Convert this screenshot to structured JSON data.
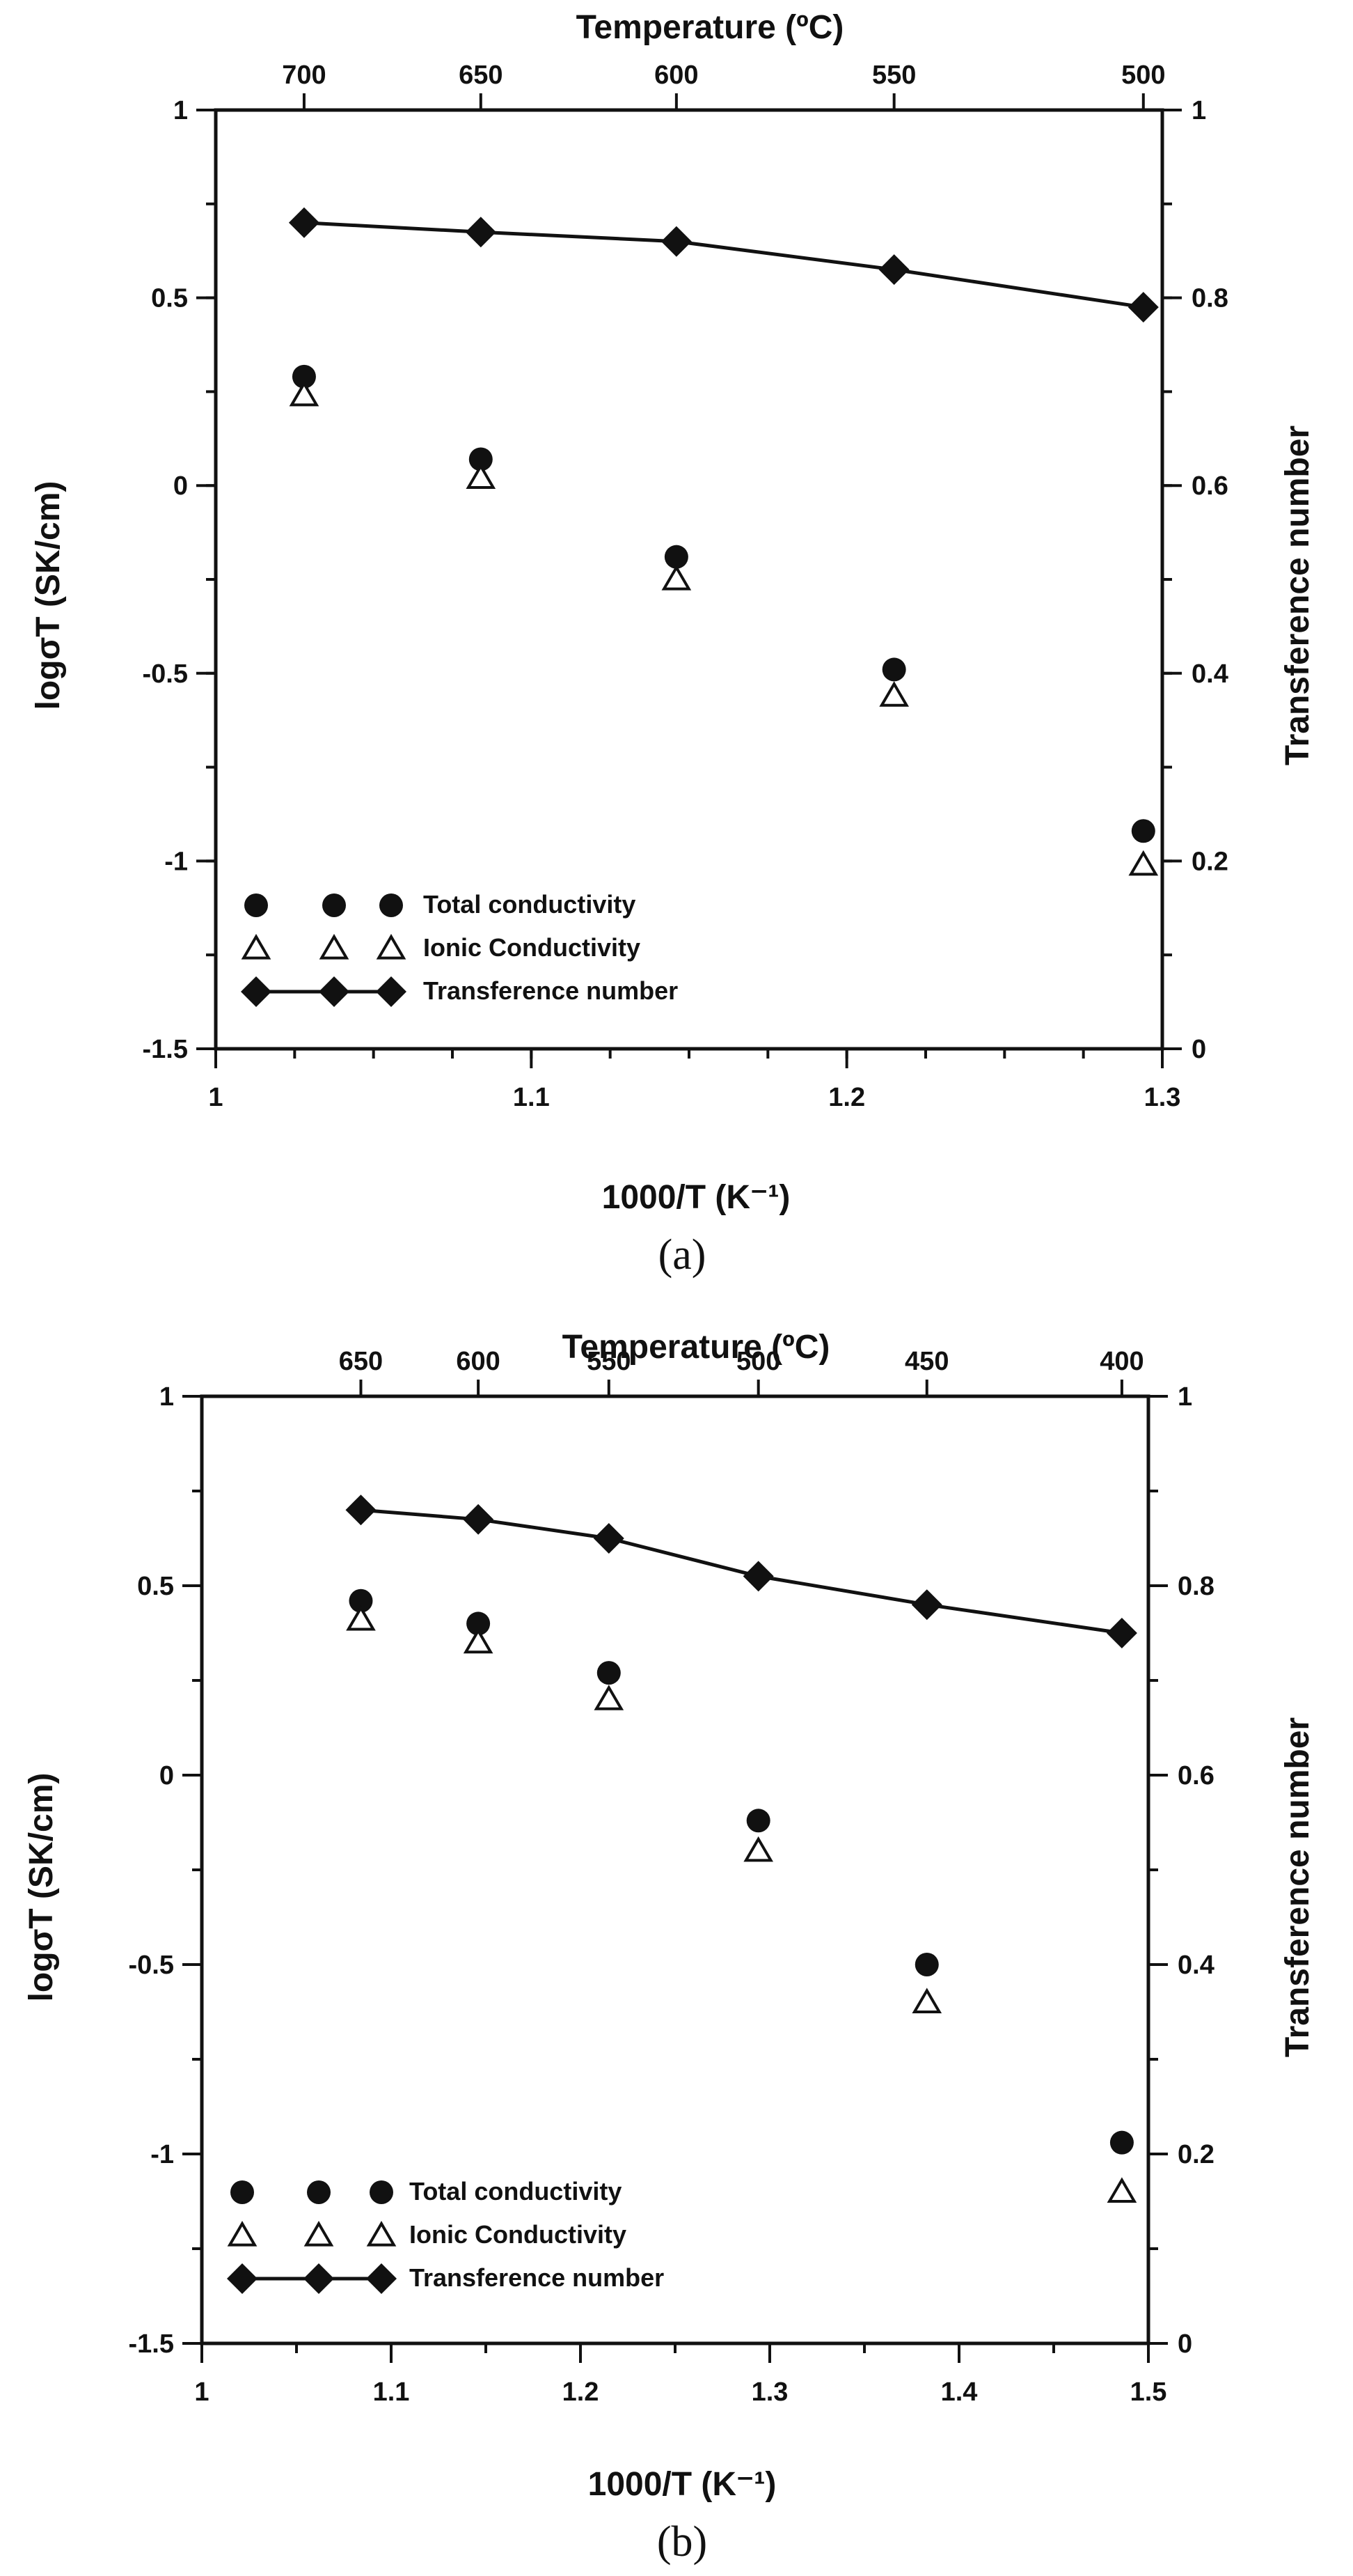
{
  "chart_data": [
    {
      "id": "a",
      "type": "scatter",
      "subfigure_label": "(a)",
      "xlabel": "1000/T (K⁻¹)",
      "ylabel_left": "logσT (SK/cm)",
      "ylabel_right": "Transference number",
      "top_axis_label": "Temperature (ºC)",
      "xlim": [
        1,
        1.3
      ],
      "ylim_left": [
        -1.5,
        1
      ],
      "ylim_right": [
        0,
        1
      ],
      "x_ticks": [
        {
          "v": 1,
          "label": "1"
        },
        {
          "v": 1.1,
          "label": "1.1"
        },
        {
          "v": 1.2,
          "label": "1.2"
        },
        {
          "v": 1.3,
          "label": "1.3"
        }
      ],
      "x_minor_step": 0.025,
      "y_left_ticks": [
        {
          "v": 1,
          "label": "1"
        },
        {
          "v": 0.5,
          "label": "0.5"
        },
        {
          "v": 0,
          "label": "0"
        },
        {
          "v": -0.5,
          "label": "-0.5"
        },
        {
          "v": -1,
          "label": "-1"
        },
        {
          "v": -1.5,
          "label": "-1.5"
        }
      ],
      "y_left_minor_step": 0.25,
      "y_right_ticks": [
        {
          "v": 1,
          "label": "1"
        },
        {
          "v": 0.8,
          "label": "0.8"
        },
        {
          "v": 0.6,
          "label": "0.6"
        },
        {
          "v": 0.4,
          "label": "0.4"
        },
        {
          "v": 0.2,
          "label": "0.2"
        },
        {
          "v": 0,
          "label": "0"
        }
      ],
      "y_right_minor_step": 0.1,
      "top_ticks": [
        {
          "v": 1.028,
          "label": "700"
        },
        {
          "v": 1.084,
          "label": "650"
        },
        {
          "v": 1.146,
          "label": "600"
        },
        {
          "v": 1.215,
          "label": "550"
        },
        {
          "v": 1.294,
          "label": "500"
        }
      ],
      "series": [
        {
          "name": "Total conductivity",
          "marker": "filled-circle",
          "axis": "left",
          "x": [
            1.028,
            1.084,
            1.146,
            1.215,
            1.294
          ],
          "y": [
            0.29,
            0.07,
            -0.19,
            -0.49,
            -0.92
          ]
        },
        {
          "name": "Ionic Conductivity",
          "marker": "open-triangle",
          "axis": "left",
          "x": [
            1.028,
            1.084,
            1.146,
            1.215,
            1.294
          ],
          "y": [
            0.24,
            0.02,
            -0.25,
            -0.56,
            -1.01
          ]
        },
        {
          "name": "Transference number",
          "marker": "filled-diamond-line",
          "axis": "right",
          "x": [
            1.028,
            1.084,
            1.146,
            1.215,
            1.294
          ],
          "y": [
            0.88,
            0.87,
            0.86,
            0.83,
            0.79
          ]
        }
      ],
      "legend_position": "bottom-left"
    },
    {
      "id": "b",
      "type": "scatter",
      "subfigure_label": "(b)",
      "xlabel": "1000/T (K⁻¹)",
      "ylabel_left": "logσT (SK/cm)",
      "ylabel_right": "Transference number",
      "top_axis_label": "Temperature (ºC)",
      "xlim": [
        1,
        1.5
      ],
      "ylim_left": [
        -1.5,
        1
      ],
      "ylim_right": [
        0,
        1
      ],
      "x_ticks": [
        {
          "v": 1,
          "label": "1"
        },
        {
          "v": 1.1,
          "label": "1.1"
        },
        {
          "v": 1.2,
          "label": "1.2"
        },
        {
          "v": 1.3,
          "label": "1.3"
        },
        {
          "v": 1.4,
          "label": "1.4"
        },
        {
          "v": 1.5,
          "label": "1.5"
        }
      ],
      "x_minor_step": 0.05,
      "y_left_ticks": [
        {
          "v": 1,
          "label": "1"
        },
        {
          "v": 0.5,
          "label": "0.5"
        },
        {
          "v": 0,
          "label": "0"
        },
        {
          "v": -0.5,
          "label": "-0.5"
        },
        {
          "v": -1,
          "label": "-1"
        },
        {
          "v": -1.5,
          "label": "-1.5"
        }
      ],
      "y_left_minor_step": 0.25,
      "y_right_ticks": [
        {
          "v": 1,
          "label": "1"
        },
        {
          "v": 0.8,
          "label": "0.8"
        },
        {
          "v": 0.6,
          "label": "0.6"
        },
        {
          "v": 0.4,
          "label": "0.4"
        },
        {
          "v": 0.2,
          "label": "0.2"
        },
        {
          "v": 0,
          "label": "0"
        }
      ],
      "y_right_minor_step": 0.1,
      "top_ticks": [
        {
          "v": 1.084,
          "label": "650"
        },
        {
          "v": 1.146,
          "label": "600"
        },
        {
          "v": 1.215,
          "label": "550"
        },
        {
          "v": 1.294,
          "label": "500"
        },
        {
          "v": 1.383,
          "label": "450"
        },
        {
          "v": 1.486,
          "label": "400"
        }
      ],
      "series": [
        {
          "name": "Total conductivity",
          "marker": "filled-circle",
          "axis": "left",
          "x": [
            1.084,
            1.146,
            1.215,
            1.294,
            1.383,
            1.486
          ],
          "y": [
            0.46,
            0.4,
            0.27,
            -0.12,
            -0.5,
            -0.97
          ]
        },
        {
          "name": "Ionic Conductivity",
          "marker": "open-triangle",
          "axis": "left",
          "x": [
            1.084,
            1.146,
            1.215,
            1.294,
            1.383,
            1.486
          ],
          "y": [
            0.41,
            0.35,
            0.2,
            -0.2,
            -0.6,
            -1.1
          ]
        },
        {
          "name": "Transference number",
          "marker": "filled-diamond-line",
          "axis": "right",
          "x": [
            1.084,
            1.146,
            1.215,
            1.294,
            1.383,
            1.486
          ],
          "y": [
            0.88,
            0.87,
            0.85,
            0.81,
            0.78,
            0.75
          ]
        }
      ],
      "legend_position": "bottom-left"
    }
  ]
}
